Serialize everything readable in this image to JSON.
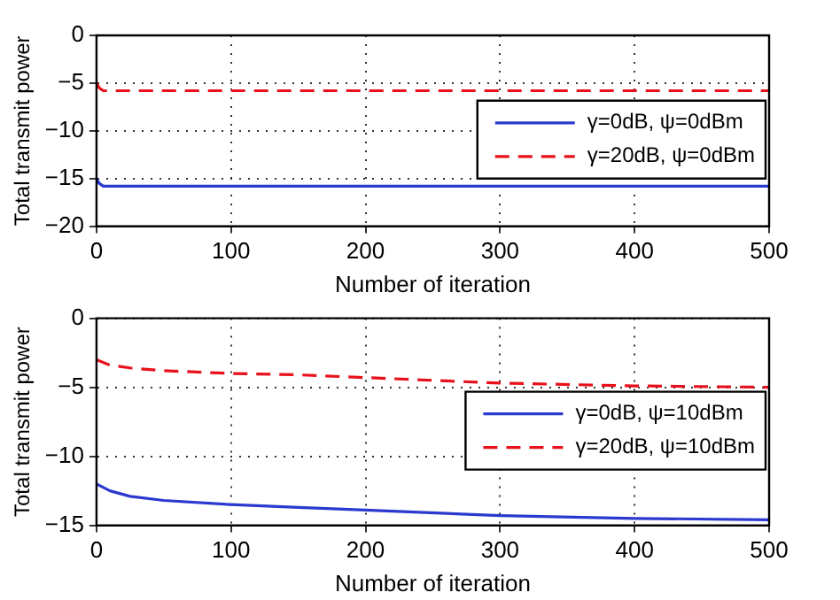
{
  "chart_data": [
    {
      "type": "line",
      "xlabel": "Number of iteration",
      "ylabel": "Total transmit power",
      "xlim": [
        0,
        500
      ],
      "xticks": [
        0,
        100,
        200,
        300,
        400,
        500
      ],
      "ylim": [
        -20,
        0
      ],
      "yticks": [
        -20,
        -15,
        -10,
        -5,
        0
      ],
      "grid": true,
      "legend": "right",
      "marker": "none",
      "series": [
        {
          "name": "γ=0dB, ψ=0dBm",
          "color": "#2a3ad0",
          "line_style": "solid",
          "x": [
            0,
            2,
            5,
            10,
            50,
            100,
            200,
            300,
            400,
            500
          ],
          "values": [
            -15,
            -15.5,
            -15.8,
            -15.8,
            -15.8,
            -15.8,
            -15.8,
            -15.8,
            -15.8,
            -15.8
          ]
        },
        {
          "name": "γ=20dB, ψ=0dBm",
          "color": "#e8101a",
          "line_style": "dashed",
          "x": [
            0,
            2,
            5,
            10,
            50,
            100,
            200,
            300,
            400,
            500
          ],
          "values": [
            -5,
            -5.5,
            -5.8,
            -5.8,
            -5.8,
            -5.8,
            -5.8,
            -5.8,
            -5.8,
            -5.8
          ]
        }
      ]
    },
    {
      "type": "line",
      "xlabel": "Number of iteration",
      "ylabel": "Total transmit power",
      "xlim": [
        0,
        500
      ],
      "xticks": [
        0,
        100,
        200,
        300,
        400,
        500
      ],
      "ylim": [
        -15,
        0
      ],
      "yticks": [
        -15,
        -10,
        -5,
        0
      ],
      "grid": true,
      "legend": "right",
      "marker": "none",
      "series": [
        {
          "name": "γ=0dB, ψ=10dBm",
          "color": "#2a3ad0",
          "line_style": "solid",
          "x": [
            0,
            10,
            25,
            50,
            100,
            150,
            200,
            300,
            400,
            500
          ],
          "values": [
            -12,
            -12.5,
            -12.9,
            -13.2,
            -13.5,
            -13.7,
            -13.9,
            -14.3,
            -14.5,
            -14.6
          ]
        },
        {
          "name": "γ=20dB, ψ=10dBm",
          "color": "#e8101a",
          "line_style": "dashed",
          "x": [
            0,
            10,
            25,
            50,
            100,
            150,
            200,
            300,
            400,
            500
          ],
          "values": [
            -3,
            -3.4,
            -3.6,
            -3.8,
            -4,
            -4.1,
            -4.3,
            -4.7,
            -4.9,
            -5
          ]
        }
      ]
    }
  ]
}
